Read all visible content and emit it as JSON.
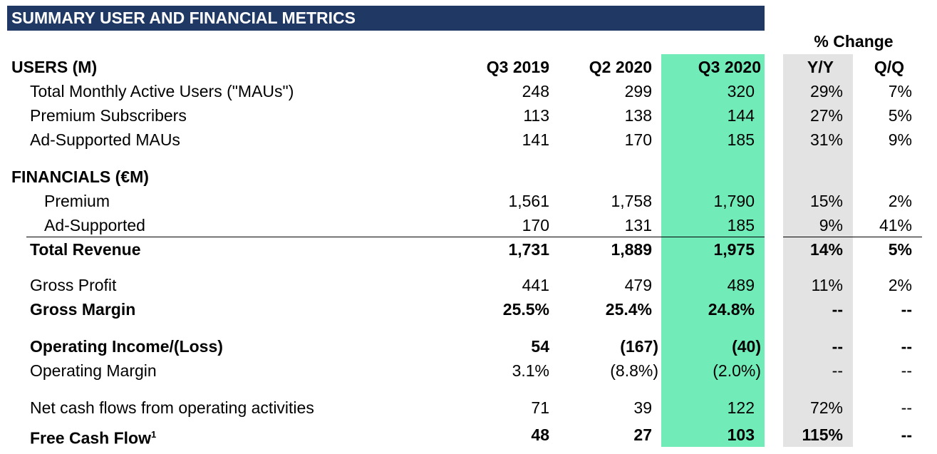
{
  "title": "SUMMARY USER AND FINANCIAL METRICS",
  "pct_change_label": "% Change",
  "users_section": "USERS (M)",
  "financials_section": "FINANCIALS (€M)",
  "columns": [
    "Q3 2019",
    "Q2 2020",
    "Q3 2020",
    "Y/Y",
    "Q/Q"
  ],
  "rows": [
    {
      "label": "Total Monthly Active Users (\"MAUs\")",
      "v": [
        "248",
        "299",
        "320",
        "29%",
        "7%"
      ]
    },
    {
      "label": "Premium Subscribers",
      "v": [
        "113",
        "138",
        "144",
        "27%",
        "5%"
      ]
    },
    {
      "label": "Ad-Supported MAUs",
      "v": [
        "141",
        "170",
        "185",
        "31%",
        "9%"
      ]
    },
    {
      "label": "Premium",
      "v": [
        "1,561",
        "1,758",
        "1,790",
        "15%",
        "2%"
      ]
    },
    {
      "label": "Ad-Supported",
      "v": [
        "170",
        "131",
        "185",
        "9%",
        "41%"
      ]
    },
    {
      "label": "Total Revenue",
      "v": [
        "1,731",
        "1,889",
        "1,975",
        "14%",
        "5%"
      ]
    },
    {
      "label": "Gross Profit",
      "v": [
        "441",
        "479",
        "489",
        "11%",
        "2%"
      ]
    },
    {
      "label": "Gross Margin",
      "v": [
        "25.5%",
        "25.4%",
        "24.8%",
        "--",
        "--"
      ]
    },
    {
      "label": "Operating Income/(Loss)",
      "v": [
        "54",
        "(167)",
        "(40)",
        "--",
        "--"
      ]
    },
    {
      "label": "Operating Margin",
      "v": [
        "3.1%",
        "(8.8%)",
        "(2.0%)",
        "--",
        "--"
      ]
    },
    {
      "label": "Net cash flows from operating activities",
      "v": [
        "71",
        "39",
        "122",
        "72%",
        "--"
      ]
    },
    {
      "label": "Free Cash Flow",
      "footnote": "1",
      "v": [
        "48",
        "27",
        "103",
        "115%",
        "--"
      ]
    }
  ],
  "colors": {
    "title_bg": "#1f3864",
    "highlight_current": "#71ecb9",
    "highlight_change": "#e3e3e3"
  }
}
